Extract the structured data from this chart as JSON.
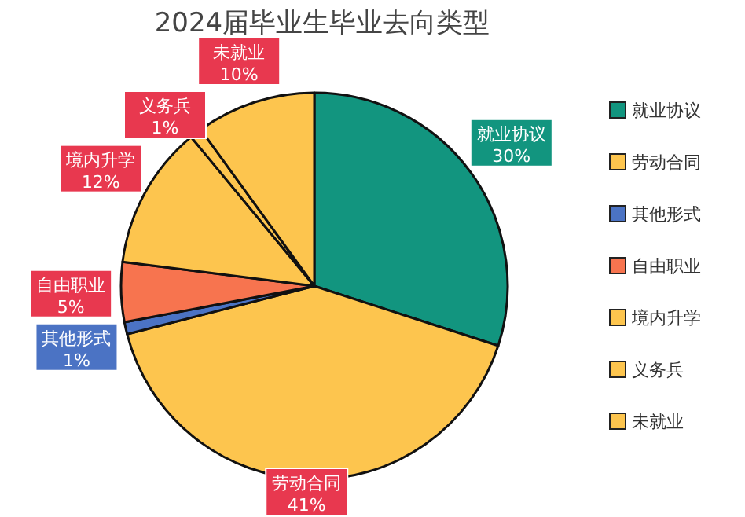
{
  "chart_data": {
    "type": "pie",
    "title": "2024届毕业生毕业去向类型",
    "categories": [
      "就业协议",
      "劳动合同",
      "其他形式",
      "自由职业",
      "境内升学",
      "义务兵",
      "未就业"
    ],
    "values": [
      30,
      41,
      1,
      5,
      12,
      1,
      10
    ],
    "colors": [
      "#12957f",
      "#fdc54e",
      "#4b73c4",
      "#f7744f",
      "#fdc54e",
      "#fdc54e",
      "#fdc54e"
    ],
    "value_labels": [
      "30%",
      "41%",
      "1%",
      "5%",
      "12%",
      "1%",
      "10%"
    ],
    "legend": "right"
  }
}
